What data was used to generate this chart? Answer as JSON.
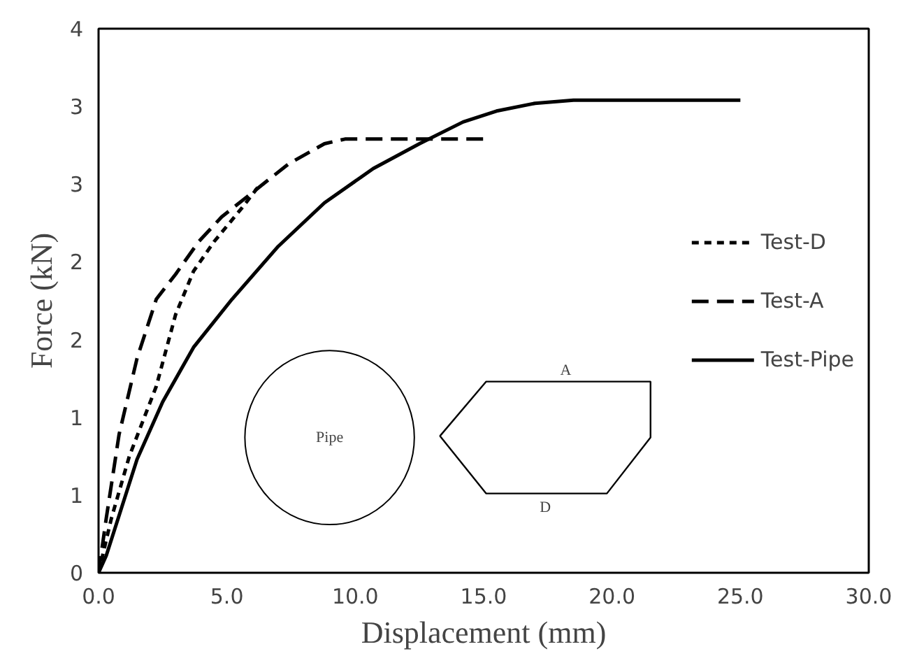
{
  "chart_data": {
    "type": "line",
    "xlabel": "Displacement (mm)",
    "ylabel": "Force (kN)",
    "xlim": [
      0,
      30
    ],
    "xticks": [
      {
        "value": 0,
        "label": "0.0"
      },
      {
        "value": 5,
        "label": "5.0"
      },
      {
        "value": 10,
        "label": "10.0"
      },
      {
        "value": 15,
        "label": "15.0"
      },
      {
        "value": 20,
        "label": "20.0"
      },
      {
        "value": 25,
        "label": "25.0"
      },
      {
        "value": 30,
        "label": "30.0"
      }
    ],
    "ylim": [
      0,
      3.5
    ],
    "yticks": [
      0,
      {
        "value": 0.5,
        "label": "1"
      },
      1,
      {
        "value": 1.5,
        "label": "2"
      },
      2,
      {
        "value": 2.5,
        "label": "3"
      },
      3,
      {
        "value": 3.5,
        "label": "4"
      }
    ],
    "grid": false,
    "legend": "right",
    "series": [
      {
        "name": "Test-D",
        "color": "#000000",
        "line_style": "dotted",
        "x": [
          0,
          0.5,
          1.2,
          2.25,
          3.0,
          3.7,
          4.5,
          5.6,
          6.3
        ],
        "values": [
          0,
          0.35,
          0.75,
          1.2,
          1.66,
          1.94,
          2.13,
          2.35,
          2.5
        ]
      },
      {
        "name": "Test-A",
        "color": "#000000",
        "line_style": "dashed",
        "x": [
          0,
          0.3,
          0.8,
          1.5,
          2.25,
          3.0,
          3.9,
          4.8,
          6.1,
          7.4,
          8.8,
          9.6,
          12,
          15.0
        ],
        "values": [
          0,
          0.35,
          0.89,
          1.38,
          1.76,
          1.92,
          2.13,
          2.29,
          2.46,
          2.63,
          2.76,
          2.79,
          2.79,
          2.79
        ]
      },
      {
        "name": "Test-Pipe",
        "color": "#000000",
        "line_style": "solid",
        "x": [
          0,
          0.3,
          1.5,
          2.5,
          3.7,
          5.2,
          7.0,
          8.8,
          10.7,
          12.5,
          14.2,
          15.5,
          17,
          18.5,
          25
        ],
        "values": [
          0,
          0.11,
          0.73,
          1.1,
          1.45,
          1.76,
          2.1,
          2.38,
          2.6,
          2.76,
          2.9,
          2.97,
          3.02,
          3.04,
          3.04
        ]
      }
    ],
    "annotations": [
      "Pipe",
      "A",
      "D"
    ]
  }
}
